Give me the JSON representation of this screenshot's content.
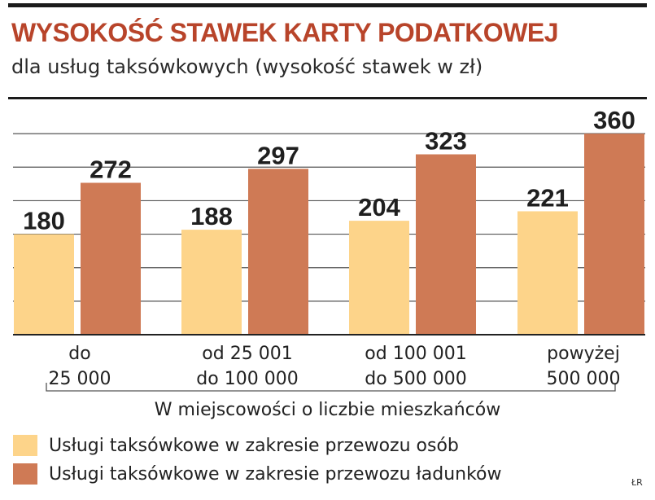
{
  "header": {
    "title": "WYSOKOŚĆ STAWEK KARTY PODATKOWEJ",
    "subtitle": "dla usług taksówkowych (wysokość stawek w zł)"
  },
  "chart_data": {
    "type": "bar",
    "title": "WYSOKOŚĆ STAWEK KARTY PODATKOWEJ",
    "subtitle": "dla usług taksówkowych (wysokość stawek w zł)",
    "categories": [
      [
        "do",
        "25 000"
      ],
      [
        "od 25 001",
        "do 100 000"
      ],
      [
        "od 100 001",
        "do 500 000"
      ],
      [
        "powyżej",
        "500 000"
      ]
    ],
    "xlabel": "W miejscowości o liczbie mieszkańców",
    "ylabel": "",
    "ylim": [
      0,
      420
    ],
    "grid": true,
    "legend_position": "bottom-left",
    "series": [
      {
        "name": "Usługi taksówkowe w zakresie przewozu osób",
        "values": [
          180,
          188,
          204,
          221
        ],
        "color": "#fdd48a"
      },
      {
        "name": "Usługi taksówkowe w zakresie przewozu ładunków",
        "values": [
          272,
          297,
          323,
          360
        ],
        "color": "#cf7a55"
      }
    ]
  },
  "footer": {
    "credit": "ŁR"
  }
}
